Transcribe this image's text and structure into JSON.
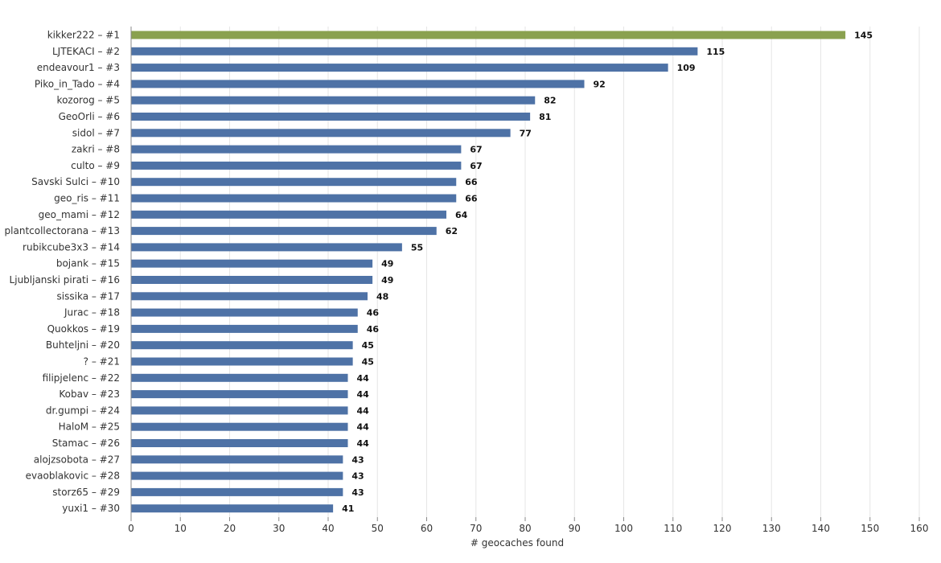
{
  "chart_data": {
    "type": "bar",
    "orientation": "horizontal",
    "categories": [
      "kikker222 – #1",
      "LJTEKACI – #2",
      "endeavour1 – #3",
      "Piko_in_Tado – #4",
      "kozorog – #5",
      "GeoOrli – #6",
      "sidol – #7",
      "zakri – #8",
      "culto – #9",
      "Savski Sulci – #10",
      "geo_ris – #11",
      "geo_mami – #12",
      "plantcollectorana – #13",
      "rubikcube3x3 – #14",
      "bojank – #15",
      "Ljubljanski pirati – #16",
      "sissika – #17",
      "Jurac – #18",
      "Quokkos – #19",
      "Buhteljni – #20",
      "? – #21",
      "filipjelenc – #22",
      "Kobav – #23",
      "dr.gumpi – #24",
      "HaloM – #25",
      "Stamac – #26",
      "alojzsobota – #27",
      "evaoblakovic – #28",
      "storz65 – #29",
      "yuxi1 – #30"
    ],
    "values": [
      145,
      115,
      109,
      92,
      82,
      81,
      77,
      67,
      67,
      66,
      66,
      64,
      62,
      55,
      49,
      49,
      48,
      46,
      46,
      45,
      45,
      44,
      44,
      44,
      44,
      44,
      43,
      43,
      43,
      41
    ],
    "xlabel": "# geocaches found",
    "xlim": [
      0,
      160
    ],
    "xticks": [
      0,
      10,
      20,
      30,
      40,
      50,
      60,
      70,
      80,
      90,
      100,
      110,
      120,
      130,
      140,
      150,
      160
    ],
    "grid": "vertical",
    "data_labels": true,
    "colors": {
      "highlight": "#8aa14f",
      "default": "#4e72a6",
      "grid": "#e6e6e6",
      "axis": "#888888"
    }
  }
}
